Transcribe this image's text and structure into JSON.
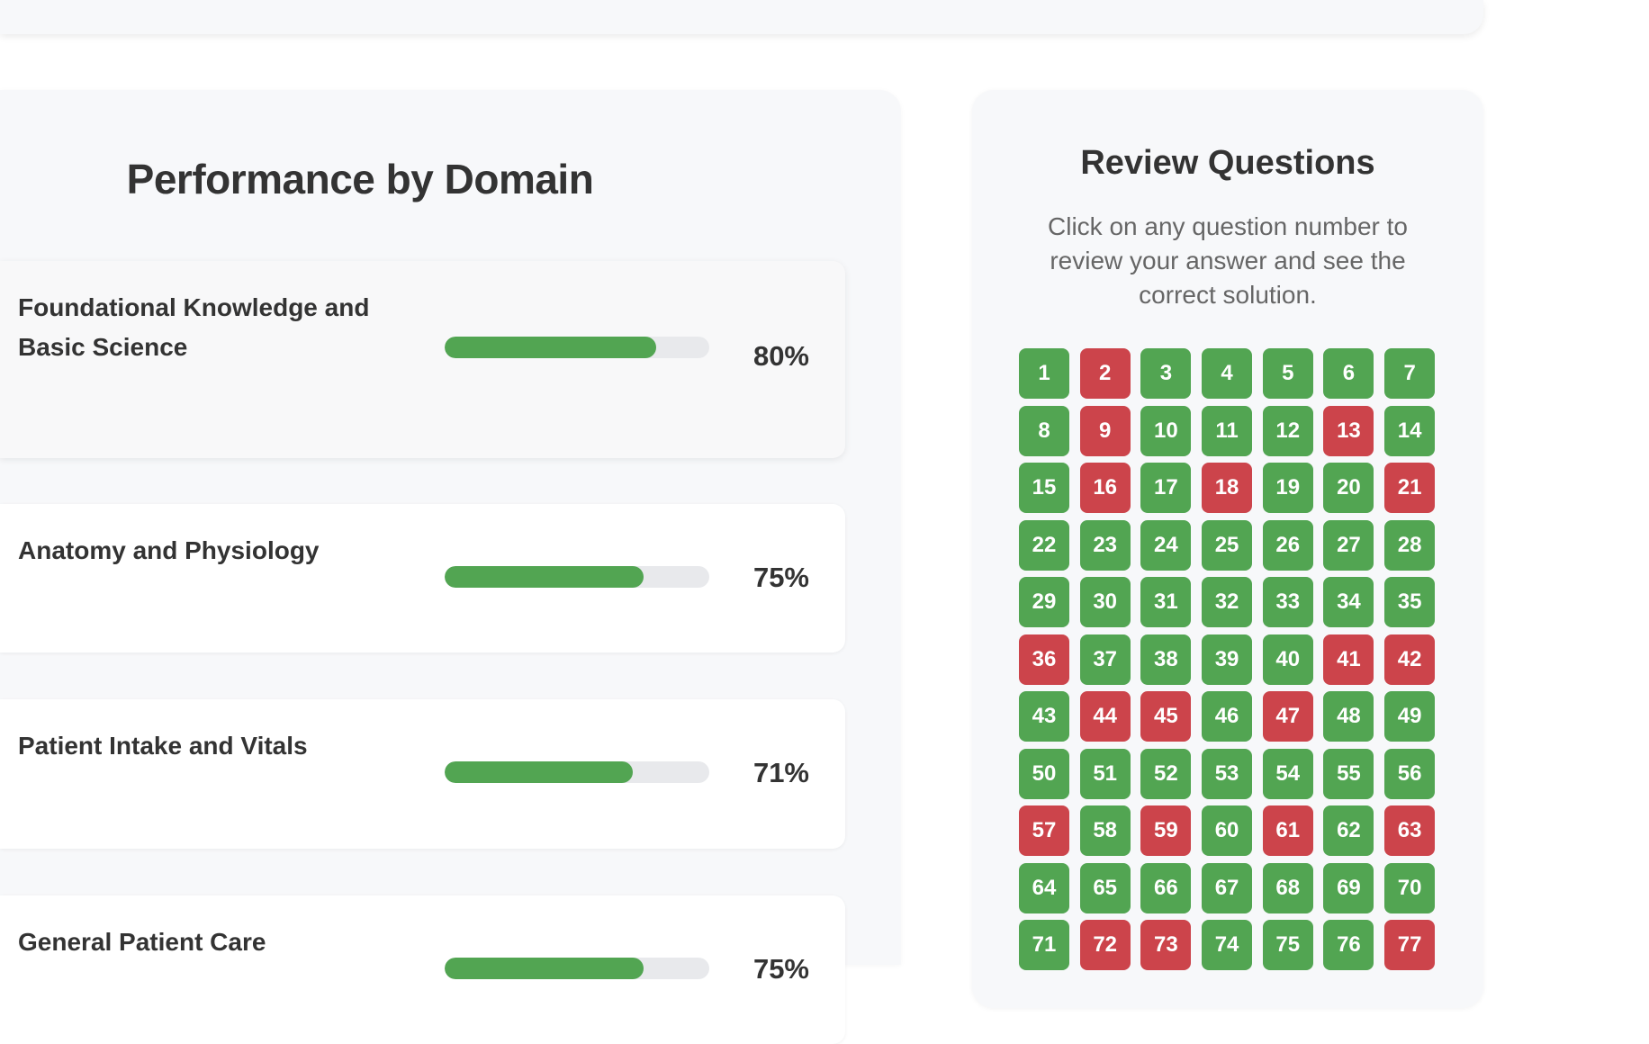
{
  "colors": {
    "correct": "#52a552",
    "incorrect": "#cc444b",
    "track": "#e8e9ec"
  },
  "performance": {
    "title": "Performance by Domain",
    "domains": [
      {
        "name": "Foundational Knowledge and Basic Science",
        "percent_label": "80%",
        "percent": 80
      },
      {
        "name": "Anatomy and Physiology",
        "percent_label": "75%",
        "percent": 75
      },
      {
        "name": "Patient Intake and Vitals",
        "percent_label": "71%",
        "percent": 71
      },
      {
        "name": "General Patient Care",
        "percent_label": "75%",
        "percent": 75
      }
    ]
  },
  "review": {
    "title": "Review Questions",
    "description": "Click on any question number to review your answer and see the correct solution.",
    "incorrect": [
      2,
      9,
      13,
      16,
      18,
      21,
      36,
      41,
      42,
      44,
      45,
      47,
      57,
      59,
      61,
      63,
      72,
      73,
      77
    ],
    "total": 77
  }
}
